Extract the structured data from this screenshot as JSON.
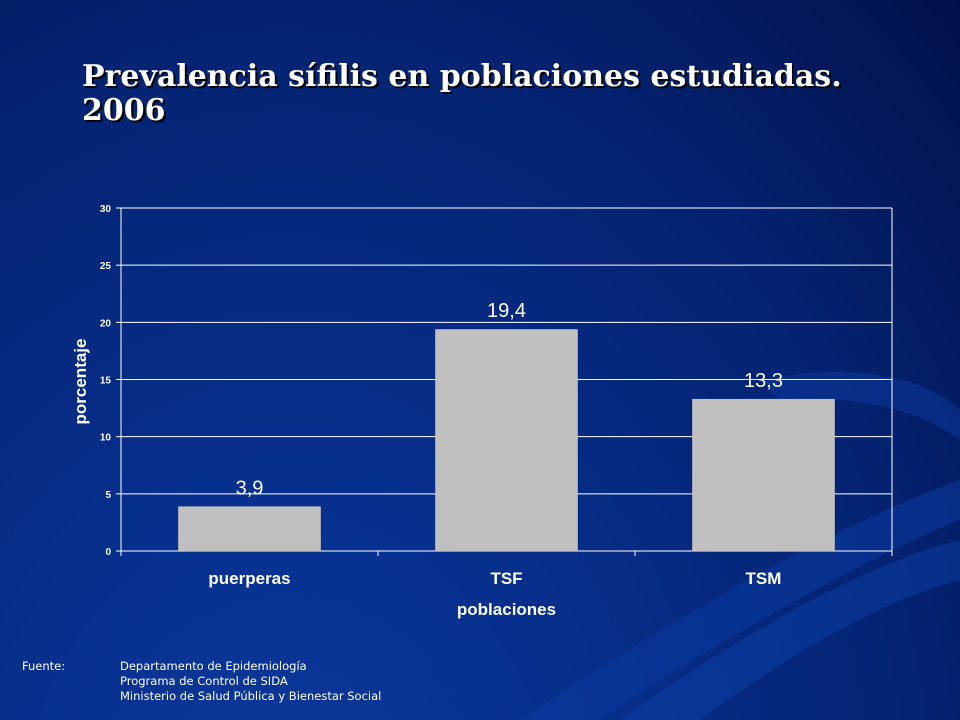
{
  "slide": {
    "title_line1": "Prevalencia sífilis en poblaciones estudiadas.",
    "title_line2": "2006"
  },
  "source": {
    "label": "Fuente:",
    "lines": [
      "Departamento de Epidemiología",
      "Programa de Control  de SIDA",
      "Ministerio de Salud Pública y Bienestar Social"
    ]
  },
  "chart_data": {
    "type": "bar",
    "categories": [
      "puerperas",
      "TSF",
      "TSM"
    ],
    "values": [
      3.9,
      19.4,
      13.3
    ],
    "data_labels": [
      "3,9",
      "19,4",
      "13,3"
    ],
    "xlabel": "poblaciones",
    "ylabel": "porcentaje",
    "ylim": [
      0,
      30
    ],
    "yticks": [
      0,
      5,
      10,
      15,
      20,
      25,
      30
    ],
    "grid": true,
    "bar_color": "#c0c0c0",
    "axis_color": "#ffffff"
  }
}
